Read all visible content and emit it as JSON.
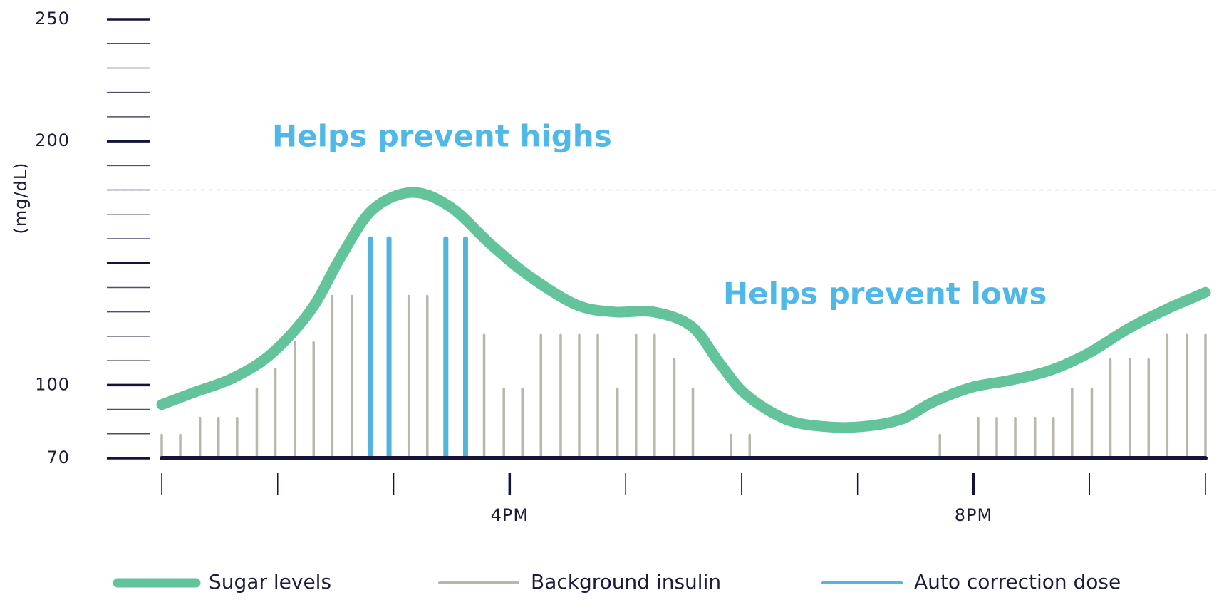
{
  "chart_data": {
    "type": "combo",
    "y_label": "(mg/dL)",
    "annotations": [
      "Helps prevent highs",
      "Helps prevent lows"
    ],
    "xlim": [
      13,
      22
    ],
    "xticks": [
      {
        "value": 13,
        "label": null
      },
      {
        "value": 14,
        "label": null
      },
      {
        "value": 15,
        "label": null
      },
      {
        "value": 16,
        "label": "4PM"
      },
      {
        "value": 17,
        "label": null
      },
      {
        "value": 18,
        "label": null
      },
      {
        "value": 19,
        "label": null
      },
      {
        "value": 20,
        "label": "8PM"
      },
      {
        "value": 21,
        "label": null
      },
      {
        "value": 22,
        "label": null
      }
    ],
    "ylim": [
      70,
      250
    ],
    "yticks": [
      70,
      {
        "value": 80,
        "label": null
      },
      {
        "value": 90,
        "label": null
      },
      100,
      {
        "value": 110,
        "label": null
      },
      {
        "value": 120,
        "label": null
      },
      {
        "value": 130,
        "label": null
      },
      {
        "value": 140,
        "label": null
      },
      {
        "value": 150,
        "label": null
      },
      {
        "value": 160,
        "label": null
      },
      {
        "value": 170,
        "label": null
      },
      {
        "value": 180,
        "label": null
      },
      {
        "value": 190,
        "label": null
      },
      200,
      {
        "value": 210,
        "label": null
      },
      {
        "value": 220,
        "label": null
      },
      {
        "value": 230,
        "label": null
      },
      {
        "value": 240,
        "label": null
      },
      250
    ],
    "reference_line": 180,
    "series": [
      {
        "name": "Sugar levels",
        "type": "line",
        "color": "#63c49c",
        "x": [
          13,
          13.28,
          13.62,
          13.95,
          14.29,
          14.55,
          14.82,
          15.16,
          15.49,
          15.83,
          16.16,
          16.57,
          16.9,
          17.24,
          17.57,
          17.81,
          18.04,
          18.38,
          18.71,
          19.05,
          19.38,
          19.65,
          19.98,
          20.32,
          20.66,
          20.99,
          21.33,
          21.66,
          22
        ],
        "values": [
          92,
          97,
          103,
          113,
          131,
          153,
          172,
          179,
          173,
          158,
          145,
          133,
          130,
          130,
          124,
          109,
          96,
          86,
          83,
          83,
          86,
          93,
          99,
          102,
          106,
          113,
          123,
          131,
          138
        ]
      },
      {
        "name": "Background insulin",
        "type": "bar",
        "color": "#b9b6ad",
        "x": [
          13,
          13.16,
          13.33,
          13.49,
          13.65,
          13.82,
          13.98,
          14.15,
          14.31,
          14.47,
          14.64,
          15.13,
          15.29,
          15.78,
          15.95,
          16.11,
          16.27,
          16.44,
          16.6,
          16.76,
          16.93,
          17.09,
          17.25,
          17.42,
          17.58,
          17.91,
          18.07,
          19.71,
          20.04,
          20.2,
          20.36,
          20.53,
          20.69,
          20.85,
          21.02,
          21.18,
          21.35,
          21.51,
          21.67,
          21.84,
          22
        ],
        "values": [
          80,
          80,
          87,
          87,
          87,
          99,
          107,
          118,
          118,
          137,
          137,
          137,
          137,
          121,
          99,
          99,
          121,
          121,
          121,
          121,
          99,
          121,
          121,
          111,
          99,
          80,
          80,
          80,
          87,
          87,
          87,
          87,
          87,
          99,
          99,
          111,
          111,
          111,
          121,
          121,
          121
        ]
      },
      {
        "name": "Auto correction dose",
        "type": "bar",
        "color": "#55b4de",
        "x": [
          14.8,
          14.96,
          15.45,
          15.62
        ],
        "values": [
          161,
          161,
          161,
          161
        ]
      }
    ]
  }
}
